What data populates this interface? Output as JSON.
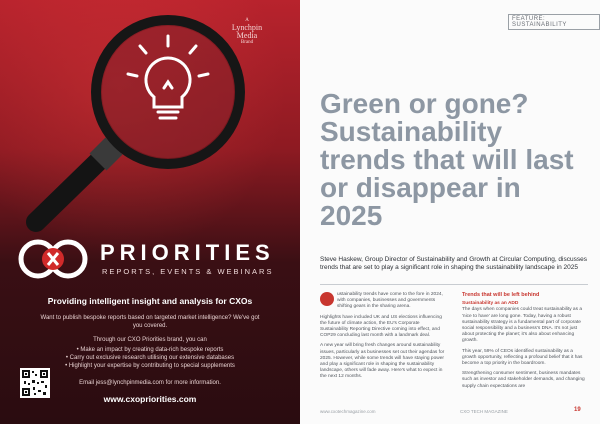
{
  "left": {
    "brand": {
      "line1": "A",
      "line2": "Lynchpin",
      "line3": "Media",
      "line4": "Brand"
    },
    "logo_text": "PRIORITIES",
    "logo_sub": "REPORTS, EVENTS & WEBINARS",
    "tagline": "Providing intelligent insight and analysis for CXOs",
    "para1": "Want to publish bespoke reports based on targeted market intelligence? We've got you covered.",
    "para2": "Through our CXO Priorities brand, you can",
    "bullets": [
      "Make an impact by creating data-rich bespoke reports",
      "Carry out exclusive research utilising our extensive databases",
      "Highlight your expertise by contributing to special supplements"
    ],
    "email": "Email jess@lynchpinmedia.com for more information.",
    "url": "www.cxopriorities.com",
    "colors": {
      "red": "#b8232d",
      "dark": "#2a0c10"
    }
  },
  "right": {
    "feature_tag": "FEATURE: SUSTAINABILITY",
    "headline": "Green or gone? Sustainability trends that will last or disappear in 2025",
    "standfirst": "Steve Haskew, Group Director of Sustainability and Growth at Circular Computing, discusses trends that are set to play a significant role in shaping the sustainability landscape in 2025",
    "col1_p1": "ustainability trends have come to the fore in 2024, with companies, businesses and governments shifting gears in the sharing arena.",
    "col1_p2": "Highlights have included UK and US elections influencing the future of climate action, the EU's Corporate Sustainability Reporting Directive coming into effect, and COP29 concluding last month with a landmark deal.",
    "col1_p3": "A new year will bring fresh changes around sustainability issues, particularly as businesses set out their agendas for 2025. However, while some trends will have staying power and play a significant role in shaping the sustainability landscape, others will fade away. Here's what to expect in the next 12 months.",
    "box_title": "Trends that will be left behind",
    "sub1": "Sustainability as an ADD",
    "col2_p1": "The days when companies could treat sustainability as a 'nice to have' are long gone. Today, having a robust sustainability strategy is a fundamental part of corporate social responsibility and a business's DNA. It's not just about protecting the planet; it's also about enhancing growth.",
    "col2_p2": "This year, 59% of CEOs identified sustainability as a growth opportunity, reflecting a profound belief that it has become a top priority in the boardroom.",
    "col2_p3": "Strengthening consumer sentiment, business mandates such as investor and stakeholder demands, and changing supply chain expectations are",
    "footer_left": "www.cxotechmagazine.com",
    "footer_right": "CXO TECH MAGAZINE",
    "page_no": "19",
    "colors": {
      "headline": "#8d97a3",
      "accent": "#c8362f"
    }
  }
}
